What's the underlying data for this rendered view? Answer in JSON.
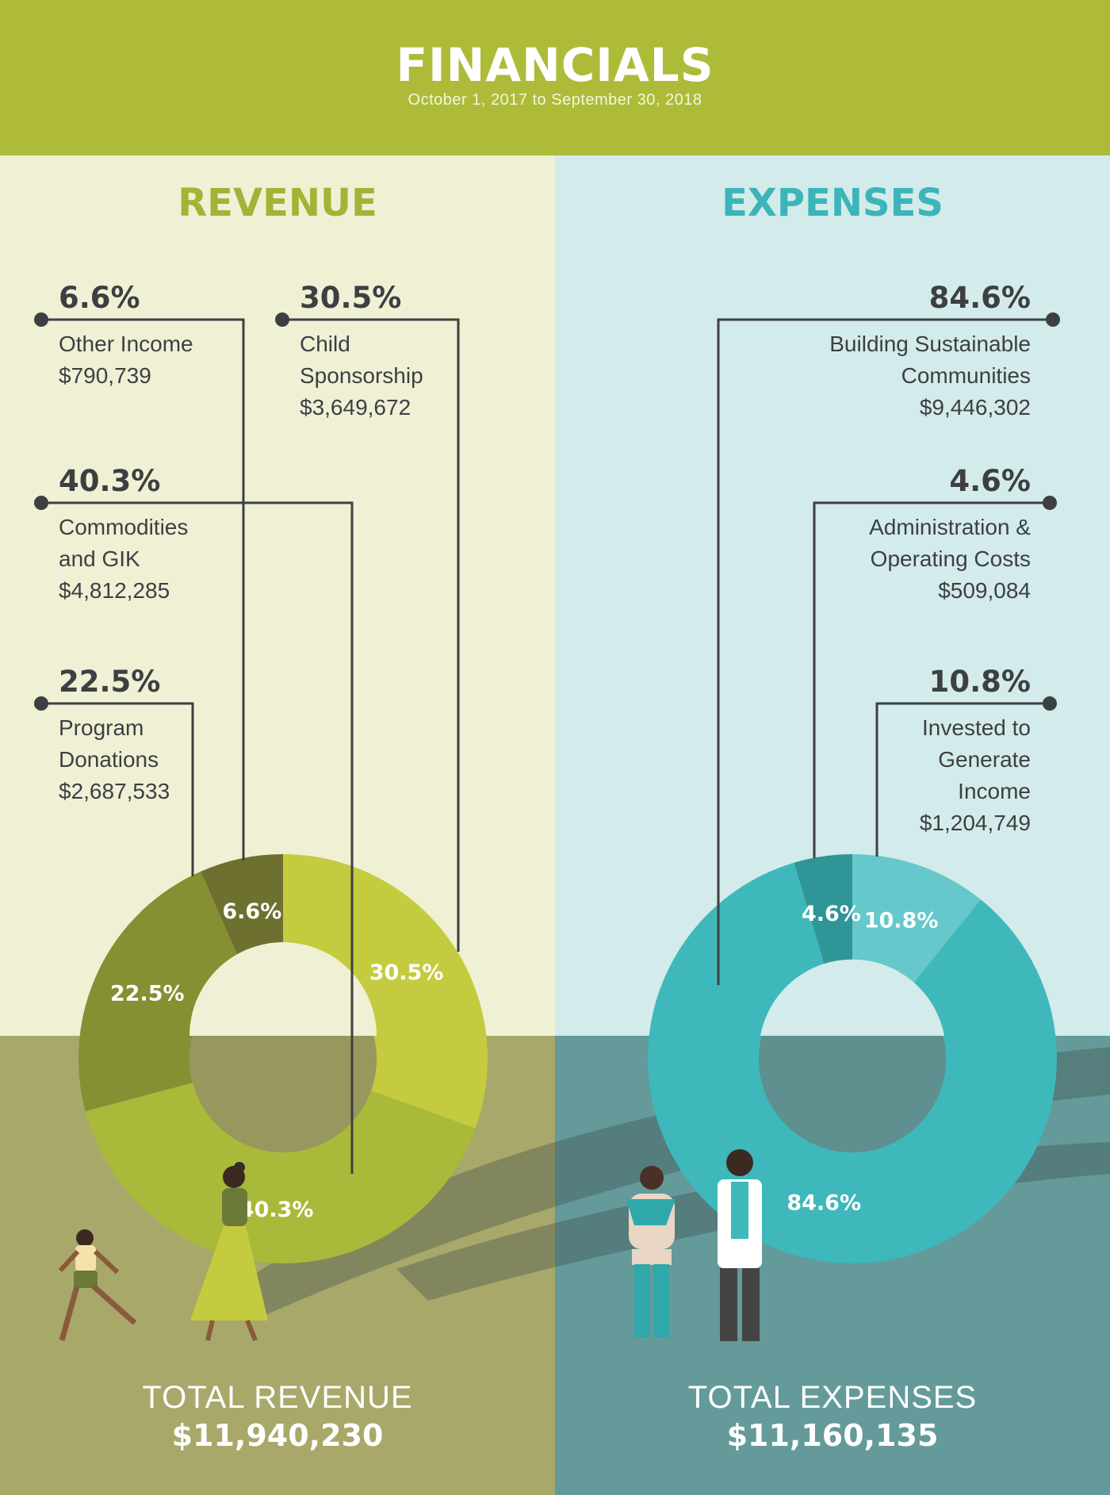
{
  "header": {
    "title": "FINANCIALS",
    "subtitle": "October 1, 2017 to September 30, 2018"
  },
  "revenue": {
    "title": "REVENUE",
    "total_label": "TOTAL REVENUE",
    "total_value": "$11,940,230",
    "items": [
      {
        "pct": "6.6%",
        "lines": [
          "Other Income",
          "$790,739"
        ]
      },
      {
        "pct": "30.5%",
        "lines": [
          "Child",
          "Sponsorship",
          "$3,649,672"
        ]
      },
      {
        "pct": "40.3%",
        "lines": [
          "Commodities",
          "and GIK",
          "$4,812,285"
        ]
      },
      {
        "pct": "22.5%",
        "lines": [
          "Program",
          "Donations",
          "$2,687,533"
        ]
      }
    ]
  },
  "expenses": {
    "title": "EXPENSES",
    "total_label": "TOTAL EXPENSES",
    "total_value": "$11,160,135",
    "items": [
      {
        "pct": "84.6%",
        "lines": [
          "Building Sustainable",
          "Communities",
          "$9,446,302"
        ]
      },
      {
        "pct": "4.6%",
        "lines": [
          "Administration &",
          "Operating Costs",
          "$509,084"
        ]
      },
      {
        "pct": "10.8%",
        "lines": [
          "Invested to",
          "Generate",
          "Income",
          "$1,204,749"
        ]
      }
    ]
  },
  "colors": {
    "header": "#aebb39",
    "revenue_accent": "#a3b337",
    "expenses_accent": "#3bb5b8",
    "revenue_bg_top": "#f0f0d5",
    "expenses_bg_top": "#d3ebeb",
    "revenue_bg_bottom": "#a8a86a",
    "expenses_bg_bottom": "#649a9a",
    "text_dark": "#3d3f42"
  },
  "chart_data": [
    {
      "type": "pie",
      "name": "revenue",
      "categories": [
        "Child Sponsorship",
        "Commodities and GIK",
        "Program Donations",
        "Other Income"
      ],
      "values": [
        30.5,
        40.3,
        22.5,
        6.6
      ],
      "slice_labels": [
        "30.5%",
        "40.3%",
        "22.5%",
        "6.6%"
      ],
      "amounts": [
        3649672,
        4812285,
        2687533,
        790739
      ],
      "colors": [
        "#c4cb3e",
        "#a9b93a",
        "#878f33",
        "#6e7030"
      ],
      "donut": true
    },
    {
      "type": "pie",
      "name": "expenses",
      "categories": [
        "Invested to Generate Income",
        "Building Sustainable Communities",
        "Administration & Operating Costs"
      ],
      "values": [
        10.8,
        84.6,
        4.6
      ],
      "slice_labels": [
        "10.8%",
        "84.6%",
        "4.6%"
      ],
      "amounts": [
        1204749,
        9446302,
        509084
      ],
      "colors": [
        "#66c8cb",
        "#3eb8bb",
        "#2f9597"
      ],
      "donut": true
    }
  ]
}
